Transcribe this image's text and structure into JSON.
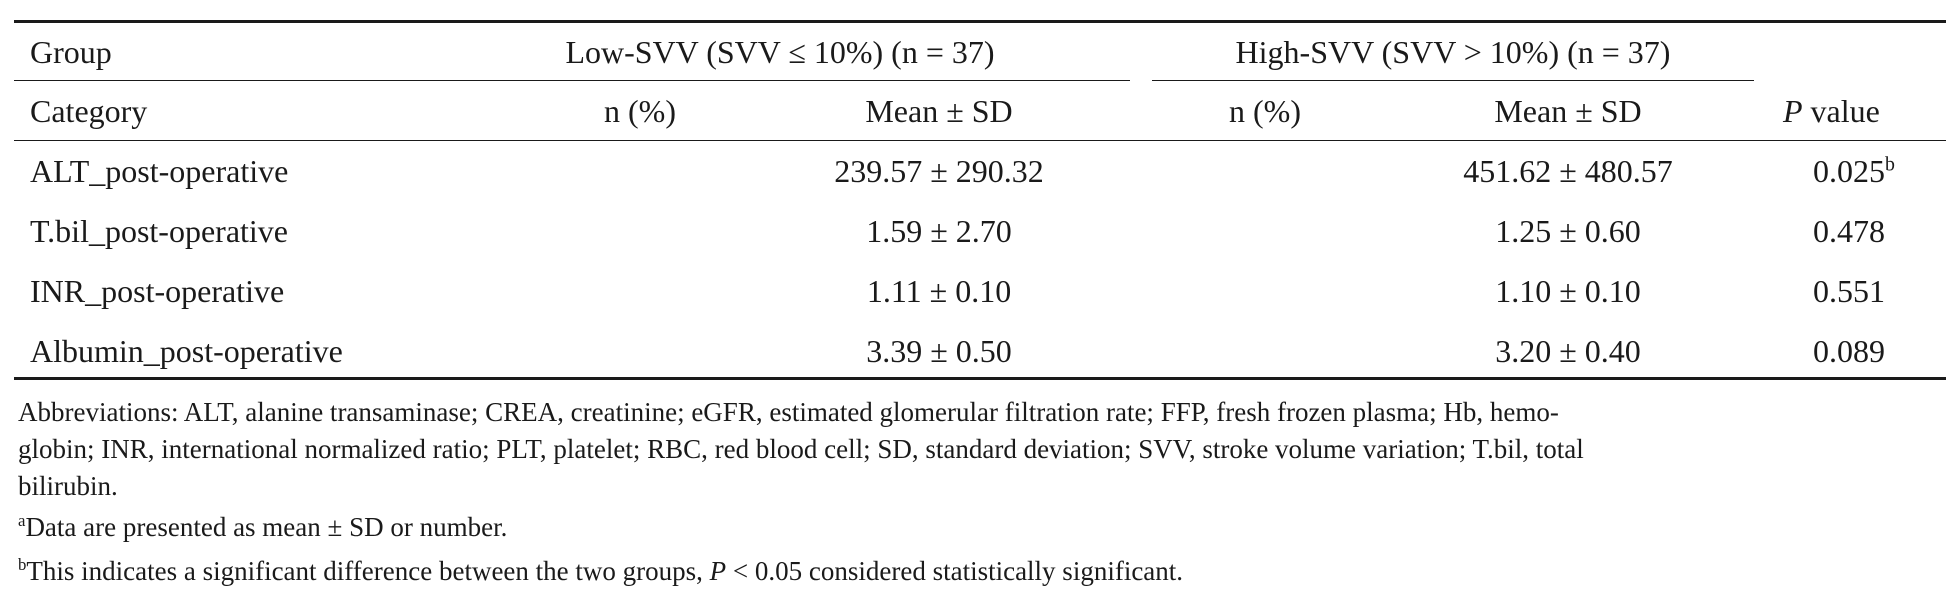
{
  "table": {
    "header": {
      "group_label": "Group",
      "low_group": "Low-SVV (SVV ≤ 10%) (n = 37)",
      "high_group": "High-SVV (SVV > 10%) (n = 37)",
      "category_label": "Category",
      "n_pct": "n (%)",
      "mean_sd": "Mean ± SD",
      "p_italic": "P",
      "p_rest": " value"
    },
    "rows": [
      {
        "category": "ALT_post-operative",
        "low_n": "",
        "low_mean": "239.57 ± 290.32",
        "high_n": "",
        "high_mean": "451.62 ± 480.57",
        "p": "0.025",
        "p_sup": "b"
      },
      {
        "category": "T.bil_post-operative",
        "low_n": "",
        "low_mean": "1.59 ± 2.70",
        "high_n": "",
        "high_mean": "1.25 ± 0.60",
        "p": "0.478",
        "p_sup": ""
      },
      {
        "category": "INR_post-operative",
        "low_n": "",
        "low_mean": "1.11 ± 0.10",
        "high_n": "",
        "high_mean": "1.10 ± 0.10",
        "p": "0.551",
        "p_sup": ""
      },
      {
        "category": "Albumin_post-operative",
        "low_n": "",
        "low_mean": "3.39 ± 0.50",
        "high_n": "",
        "high_mean": "3.20 ± 0.40",
        "p": "0.089",
        "p_sup": ""
      }
    ]
  },
  "footnotes": {
    "abbreviations_line1": "Abbreviations: ALT, alanine transaminase; CREA, creatinine; eGFR, estimated glomerular filtration rate; FFP, fresh frozen plasma; Hb, hemo-",
    "abbreviations_line2": "globin; INR, international normalized ratio; PLT, platelet; RBC, red blood cell; SD, standard deviation; SVV, stroke volume variation; T.bil, total",
    "abbreviations_line3": "bilirubin.",
    "note_a_marker": "a",
    "note_a_text": "Data are presented as mean ± SD or number.",
    "note_b_marker": "b",
    "note_b_text_1": "This indicates a significant difference between the two groups, ",
    "note_b_p": "P",
    "note_b_text_2": " < 0.05 considered statistically significant."
  }
}
